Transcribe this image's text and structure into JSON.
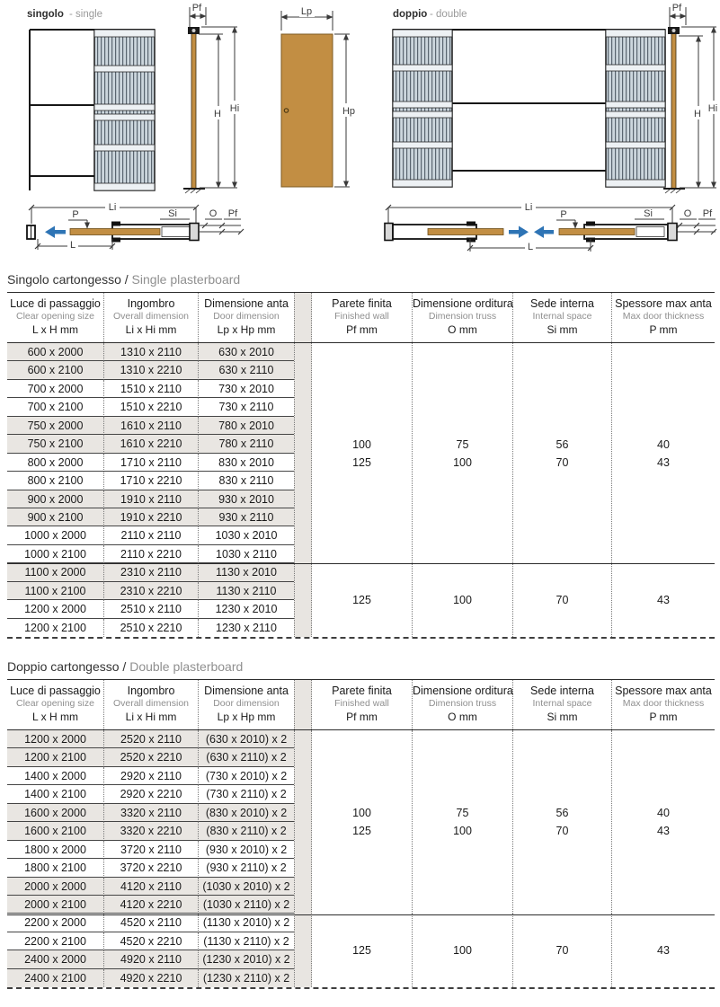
{
  "colors": {
    "door": "#c28e43",
    "door_edge": "#7d5a20",
    "frame_panel": "#ccd6dd",
    "arrow_blue": "#2e74b5",
    "row_shade": "#e9e6e2",
    "rule_dark": "#2b2b2b"
  },
  "dim_labels": {
    "pf": "Pf",
    "h": "H",
    "hi": "Hi",
    "lp": "Lp",
    "hp": "Hp",
    "li": "Li",
    "p": "P",
    "si": "Si",
    "o": "O",
    "l": "L"
  },
  "diagrams": {
    "single": {
      "title": "singolo",
      "subtitle": "- single"
    },
    "double": {
      "title": "doppio",
      "subtitle": "- double"
    }
  },
  "tables": [
    {
      "title_it": "Singolo cartongesso",
      "title_sep": " / ",
      "title_en": "Single plasterboard",
      "columns": [
        {
          "it": "Luce di passaggio",
          "en": "Clear opening size",
          "sym": "L x H mm"
        },
        {
          "it": "Ingombro",
          "en": "Overall dimension",
          "sym": "Li x Hi mm"
        },
        {
          "it": "Dimensione anta",
          "en": "Door dimension",
          "sym": "Lp x Hp mm"
        },
        {
          "it": "Parete finita",
          "en": "Finished wall",
          "sym": "Pf mm"
        },
        {
          "it": "Dimensione orditura",
          "en": "Dimension truss",
          "sym": "O mm"
        },
        {
          "it": "Sede interna",
          "en": "Internal space",
          "sym": "Si mm"
        },
        {
          "it": "Spessore max anta",
          "en": "Max door thickness",
          "sym": "P mm"
        }
      ],
      "rows": [
        [
          "600 x 2000",
          "1310 x 2110",
          "630 x 2010"
        ],
        [
          "600 x 2100",
          "1310 x 2210",
          "630 x 2110"
        ],
        [
          "700 x 2000",
          "1510 x 2110",
          "730 x 2010"
        ],
        [
          "700 x 2100",
          "1510 x 2210",
          "730 x 2110"
        ],
        [
          "750 x 2000",
          "1610 x 2110",
          "780 x 2010"
        ],
        [
          "750 x 2100",
          "1610 x 2210",
          "780 x 2110"
        ],
        [
          "800 x 2000",
          "1710 x 2110",
          "830 x 2010"
        ],
        [
          "800 x 2100",
          "1710 x 2210",
          "830 x 2110"
        ],
        [
          "900 x 2000",
          "1910 x 2110",
          "930 x 2010"
        ],
        [
          "900 x 2100",
          "1910 x 2210",
          "930 x 2110"
        ],
        [
          "1000 x 2000",
          "2110 x 2110",
          "1030 x 2010"
        ],
        [
          "1000 x 2100",
          "2110 x 2210",
          "1030 x 2110"
        ],
        [
          "1100 x 2000",
          "2310 x 2110",
          "1130 x 2010"
        ],
        [
          "1100 x 2100",
          "2310 x 2210",
          "1130 x 2110"
        ],
        [
          "1200 x 2000",
          "2510 x 2110",
          "1230 x 2010"
        ],
        [
          "1200 x 2100",
          "2510 x 2210",
          "1230 x 2110"
        ]
      ],
      "groups": [
        {
          "rows": 12,
          "values": [
            [
              "100",
              "125"
            ],
            [
              "75",
              "100"
            ],
            [
              "56",
              "70"
            ],
            [
              "40",
              "43"
            ]
          ]
        },
        {
          "rows": 4,
          "values": [
            [
              "125"
            ],
            [
              "100"
            ],
            [
              "70"
            ],
            [
              "43"
            ]
          ]
        }
      ]
    },
    {
      "title_it": "Doppio cartongesso",
      "title_sep": " / ",
      "title_en": "Double plasterboard",
      "columns": [
        {
          "it": "Luce di passaggio",
          "en": "Clear opening size",
          "sym": "L x H mm"
        },
        {
          "it": "Ingombro",
          "en": "Overall dimension",
          "sym": "Li x Hi mm"
        },
        {
          "it": "Dimensione anta",
          "en": "Door dimension",
          "sym": "Lp x Hp mm"
        },
        {
          "it": "Parete finita",
          "en": "Finished wall",
          "sym": "Pf mm"
        },
        {
          "it": "Dimensione orditura",
          "en": "Dimension truss",
          "sym": "O mm"
        },
        {
          "it": "Sede interna",
          "en": "Internal space",
          "sym": "Si mm"
        },
        {
          "it": "Spessore max anta",
          "en": "Max door thickness",
          "sym": "P mm"
        }
      ],
      "rows": [
        [
          "1200 x 2000",
          "2520 x 2110",
          "(630 x 2010) x 2"
        ],
        [
          "1200 x 2100",
          "2520 x 2210",
          "(630 x 2110) x 2"
        ],
        [
          "1400 x 2000",
          "2920 x 2110",
          "(730 x 2010) x 2"
        ],
        [
          "1400 x 2100",
          "2920 x 2210",
          "(730 x 2110) x 2"
        ],
        [
          "1600 x 2000",
          "3320 x 2110",
          "(830 x 2010) x 2"
        ],
        [
          "1600 x 2100",
          "3320 x 2210",
          "(830 x 2110) x 2"
        ],
        [
          "1800 x 2000",
          "3720 x 2110",
          "(930 x 2010) x 2"
        ],
        [
          "1800 x 2100",
          "3720 x 2210",
          "(930 x 2110) x 2"
        ],
        [
          "2000 x 2000",
          "4120 x 2110",
          "(1030 x 2010) x 2"
        ],
        [
          "2000 x 2100",
          "4120 x 2210",
          "(1030 x 2110) x 2"
        ],
        [
          "2200 x 2000",
          "4520 x 2110",
          "(1130 x 2010) x 2"
        ],
        [
          "2200 x 2100",
          "4520 x 2210",
          "(1130 x 2110) x 2"
        ],
        [
          "2400 x 2000",
          "4920 x 2110",
          "(1230 x 2010) x 2"
        ],
        [
          "2400 x 2100",
          "4920 x 2210",
          "(1230 x 2110) x 2"
        ]
      ],
      "groups": [
        {
          "rows": 10,
          "values": [
            [
              "100",
              "125"
            ],
            [
              "75",
              "100"
            ],
            [
              "56",
              "70"
            ],
            [
              "40",
              "43"
            ]
          ]
        },
        {
          "rows": 4,
          "values": [
            [
              "125"
            ],
            [
              "100"
            ],
            [
              "70"
            ],
            [
              "43"
            ]
          ]
        }
      ]
    }
  ]
}
